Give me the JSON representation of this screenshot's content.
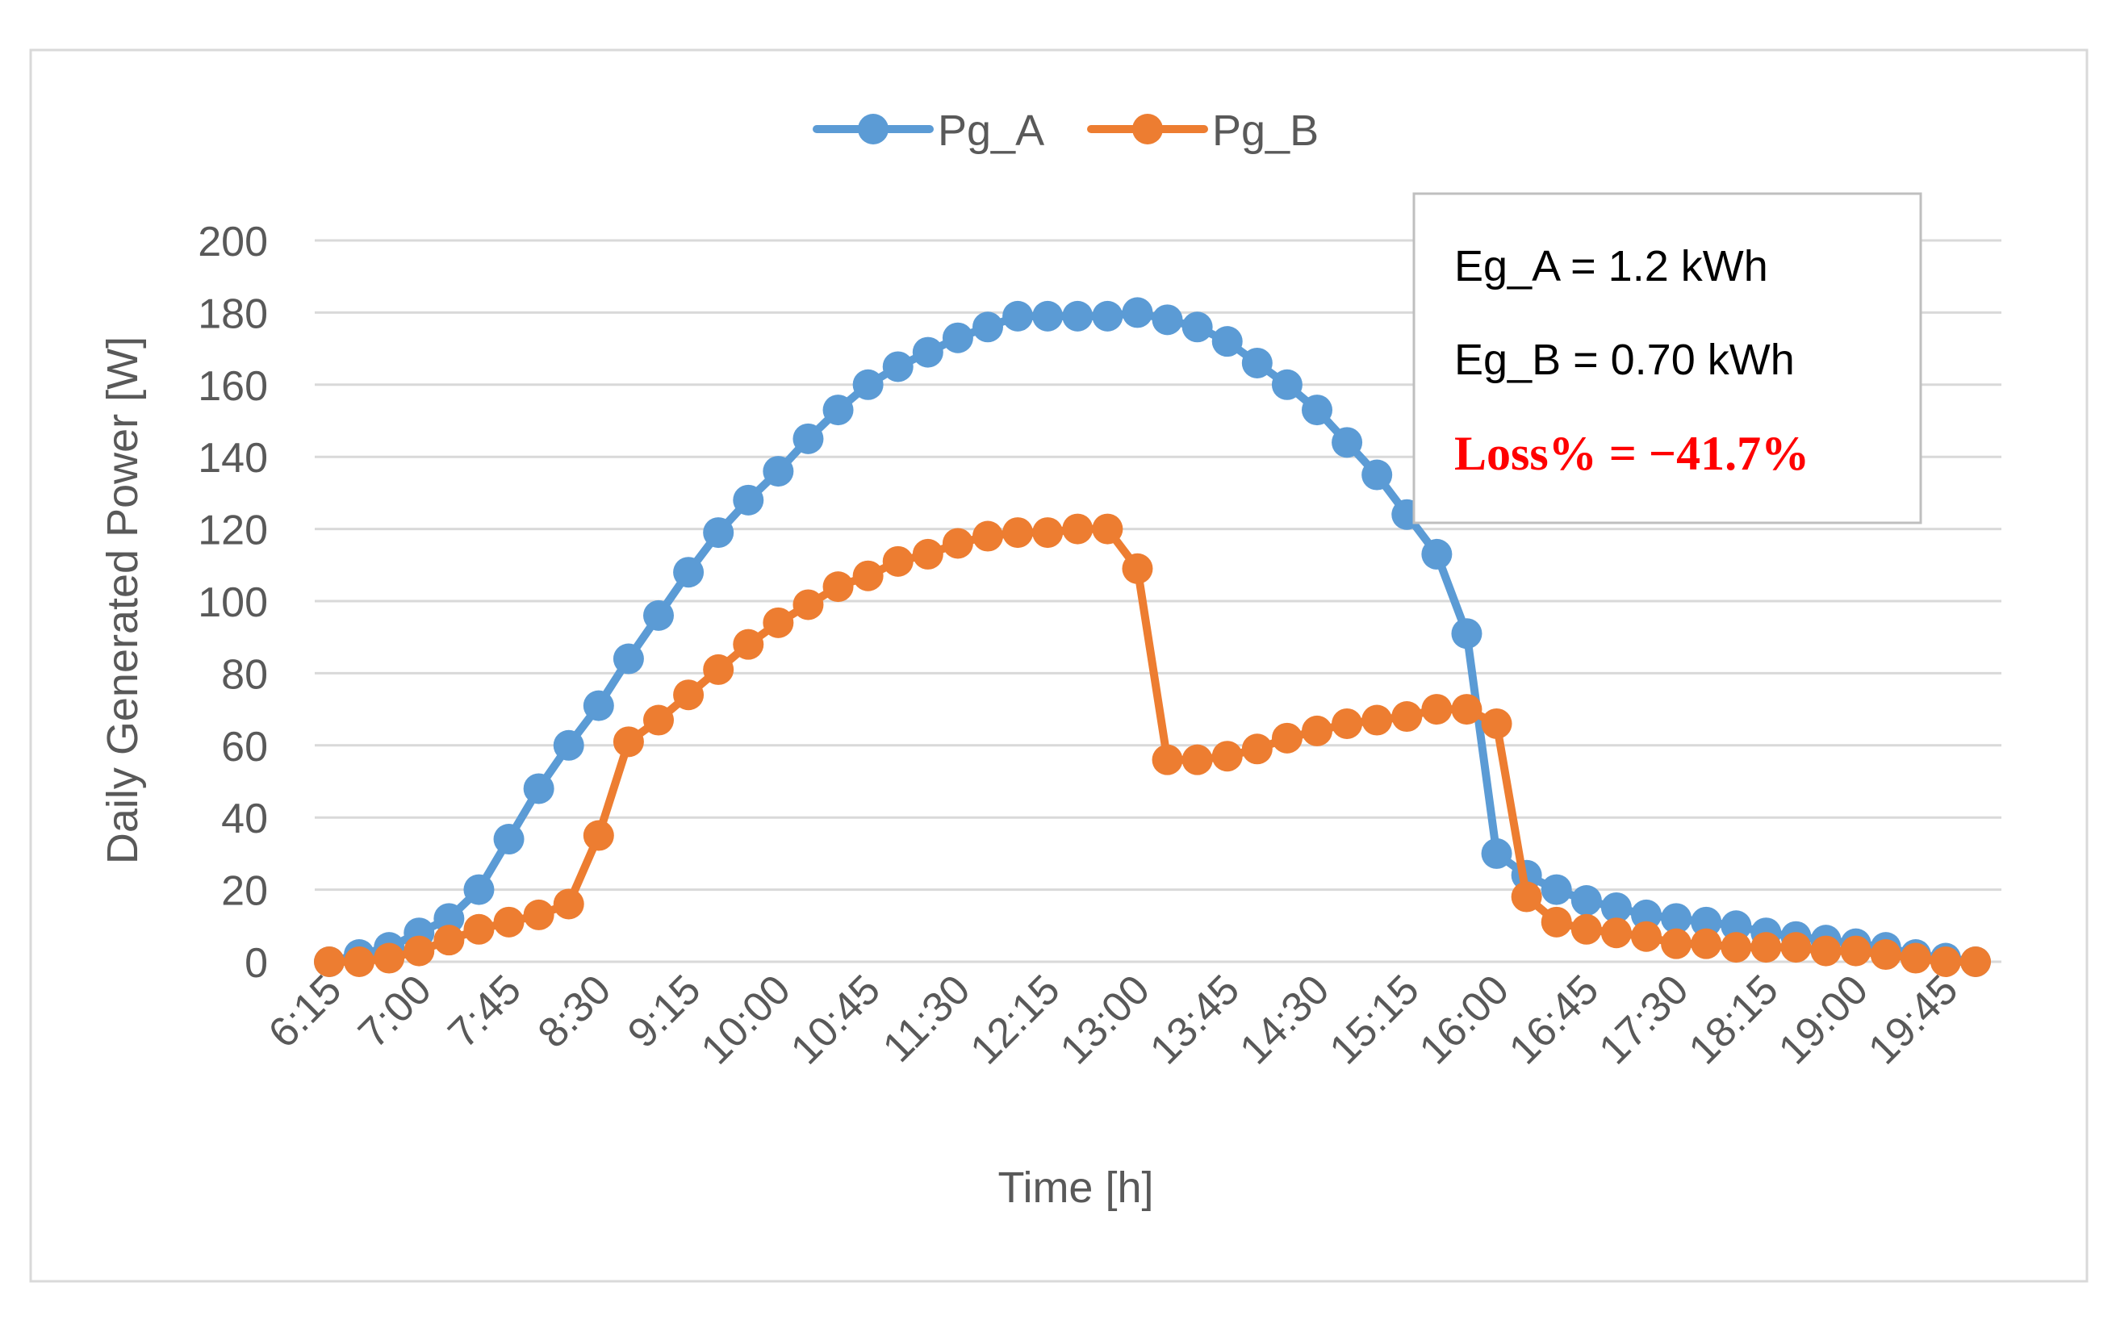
{
  "chart_data": {
    "type": "line",
    "title": "",
    "xlabel": "Time [h]",
    "ylabel": "Daily Generated Power [W]",
    "ylim": [
      0,
      200
    ],
    "yticks": [
      "0",
      "20",
      "40",
      "60",
      "80",
      "100",
      "120",
      "140",
      "160",
      "180",
      "200"
    ],
    "grid": true,
    "legend_position": "top-center",
    "x_tick_labels": [
      "6:15",
      "7:00",
      "7:45",
      "8:30",
      "9:15",
      "10:00",
      "10:45",
      "11:30",
      "12:15",
      "13:00",
      "13:45",
      "14:30",
      "15:15",
      "16:00",
      "16:45",
      "17:30",
      "18:15",
      "19:00",
      "19:45"
    ],
    "x": [
      "6:15",
      "6:30",
      "6:45",
      "7:00",
      "7:15",
      "7:30",
      "7:45",
      "8:00",
      "8:15",
      "8:30",
      "8:45",
      "9:00",
      "9:15",
      "9:30",
      "9:45",
      "10:00",
      "10:15",
      "10:30",
      "10:45",
      "11:00",
      "11:15",
      "11:30",
      "11:45",
      "12:00",
      "12:15",
      "12:30",
      "12:45",
      "13:00",
      "13:15",
      "13:30",
      "13:45",
      "14:00",
      "14:15",
      "14:30",
      "14:45",
      "15:00",
      "15:15",
      "15:30",
      "15:45",
      "16:00",
      "16:15",
      "16:30",
      "16:45",
      "17:00",
      "17:15",
      "17:30",
      "17:45",
      "18:00",
      "18:15",
      "18:30",
      "18:45",
      "19:00",
      "19:15",
      "19:30",
      "19:45",
      "20:00"
    ],
    "series": [
      {
        "name": "Pg_A",
        "color": "#5B9BD5",
        "values": [
          0,
          2,
          4,
          8,
          12,
          20,
          34,
          48,
          60,
          71,
          84,
          96,
          108,
          119,
          128,
          136,
          145,
          153,
          160,
          165,
          169,
          173,
          176,
          179,
          179,
          179,
          179,
          180,
          178,
          176,
          172,
          166,
          160,
          153,
          144,
          135,
          124,
          113,
          91,
          30,
          24,
          20,
          17,
          15,
          13,
          12,
          11,
          10,
          8,
          7,
          6,
          5,
          4,
          2,
          1,
          0
        ]
      },
      {
        "name": "Pg_B",
        "color": "#ED7D31",
        "values": [
          0,
          0,
          1,
          3,
          6,
          9,
          11,
          13,
          16,
          35,
          61,
          67,
          74,
          81,
          88,
          94,
          99,
          104,
          107,
          111,
          113,
          116,
          118,
          119,
          119,
          120,
          120,
          109,
          56,
          56,
          57,
          59,
          62,
          64,
          66,
          67,
          68,
          70,
          70,
          66,
          18,
          11,
          9,
          8,
          7,
          5,
          5,
          4,
          4,
          4,
          3,
          3,
          2,
          1,
          0,
          0
        ]
      }
    ],
    "annotation": {
      "line1": "Eg_A = 1.2 kWh",
      "line2": "Eg_B = 0.70 kWh",
      "line3": "Loss% = −41.7%",
      "line3_color": "#FF0000"
    }
  },
  "colors": {
    "grid": "#D9D9D9",
    "text": "#595959",
    "frame": "#D9D9D9"
  }
}
